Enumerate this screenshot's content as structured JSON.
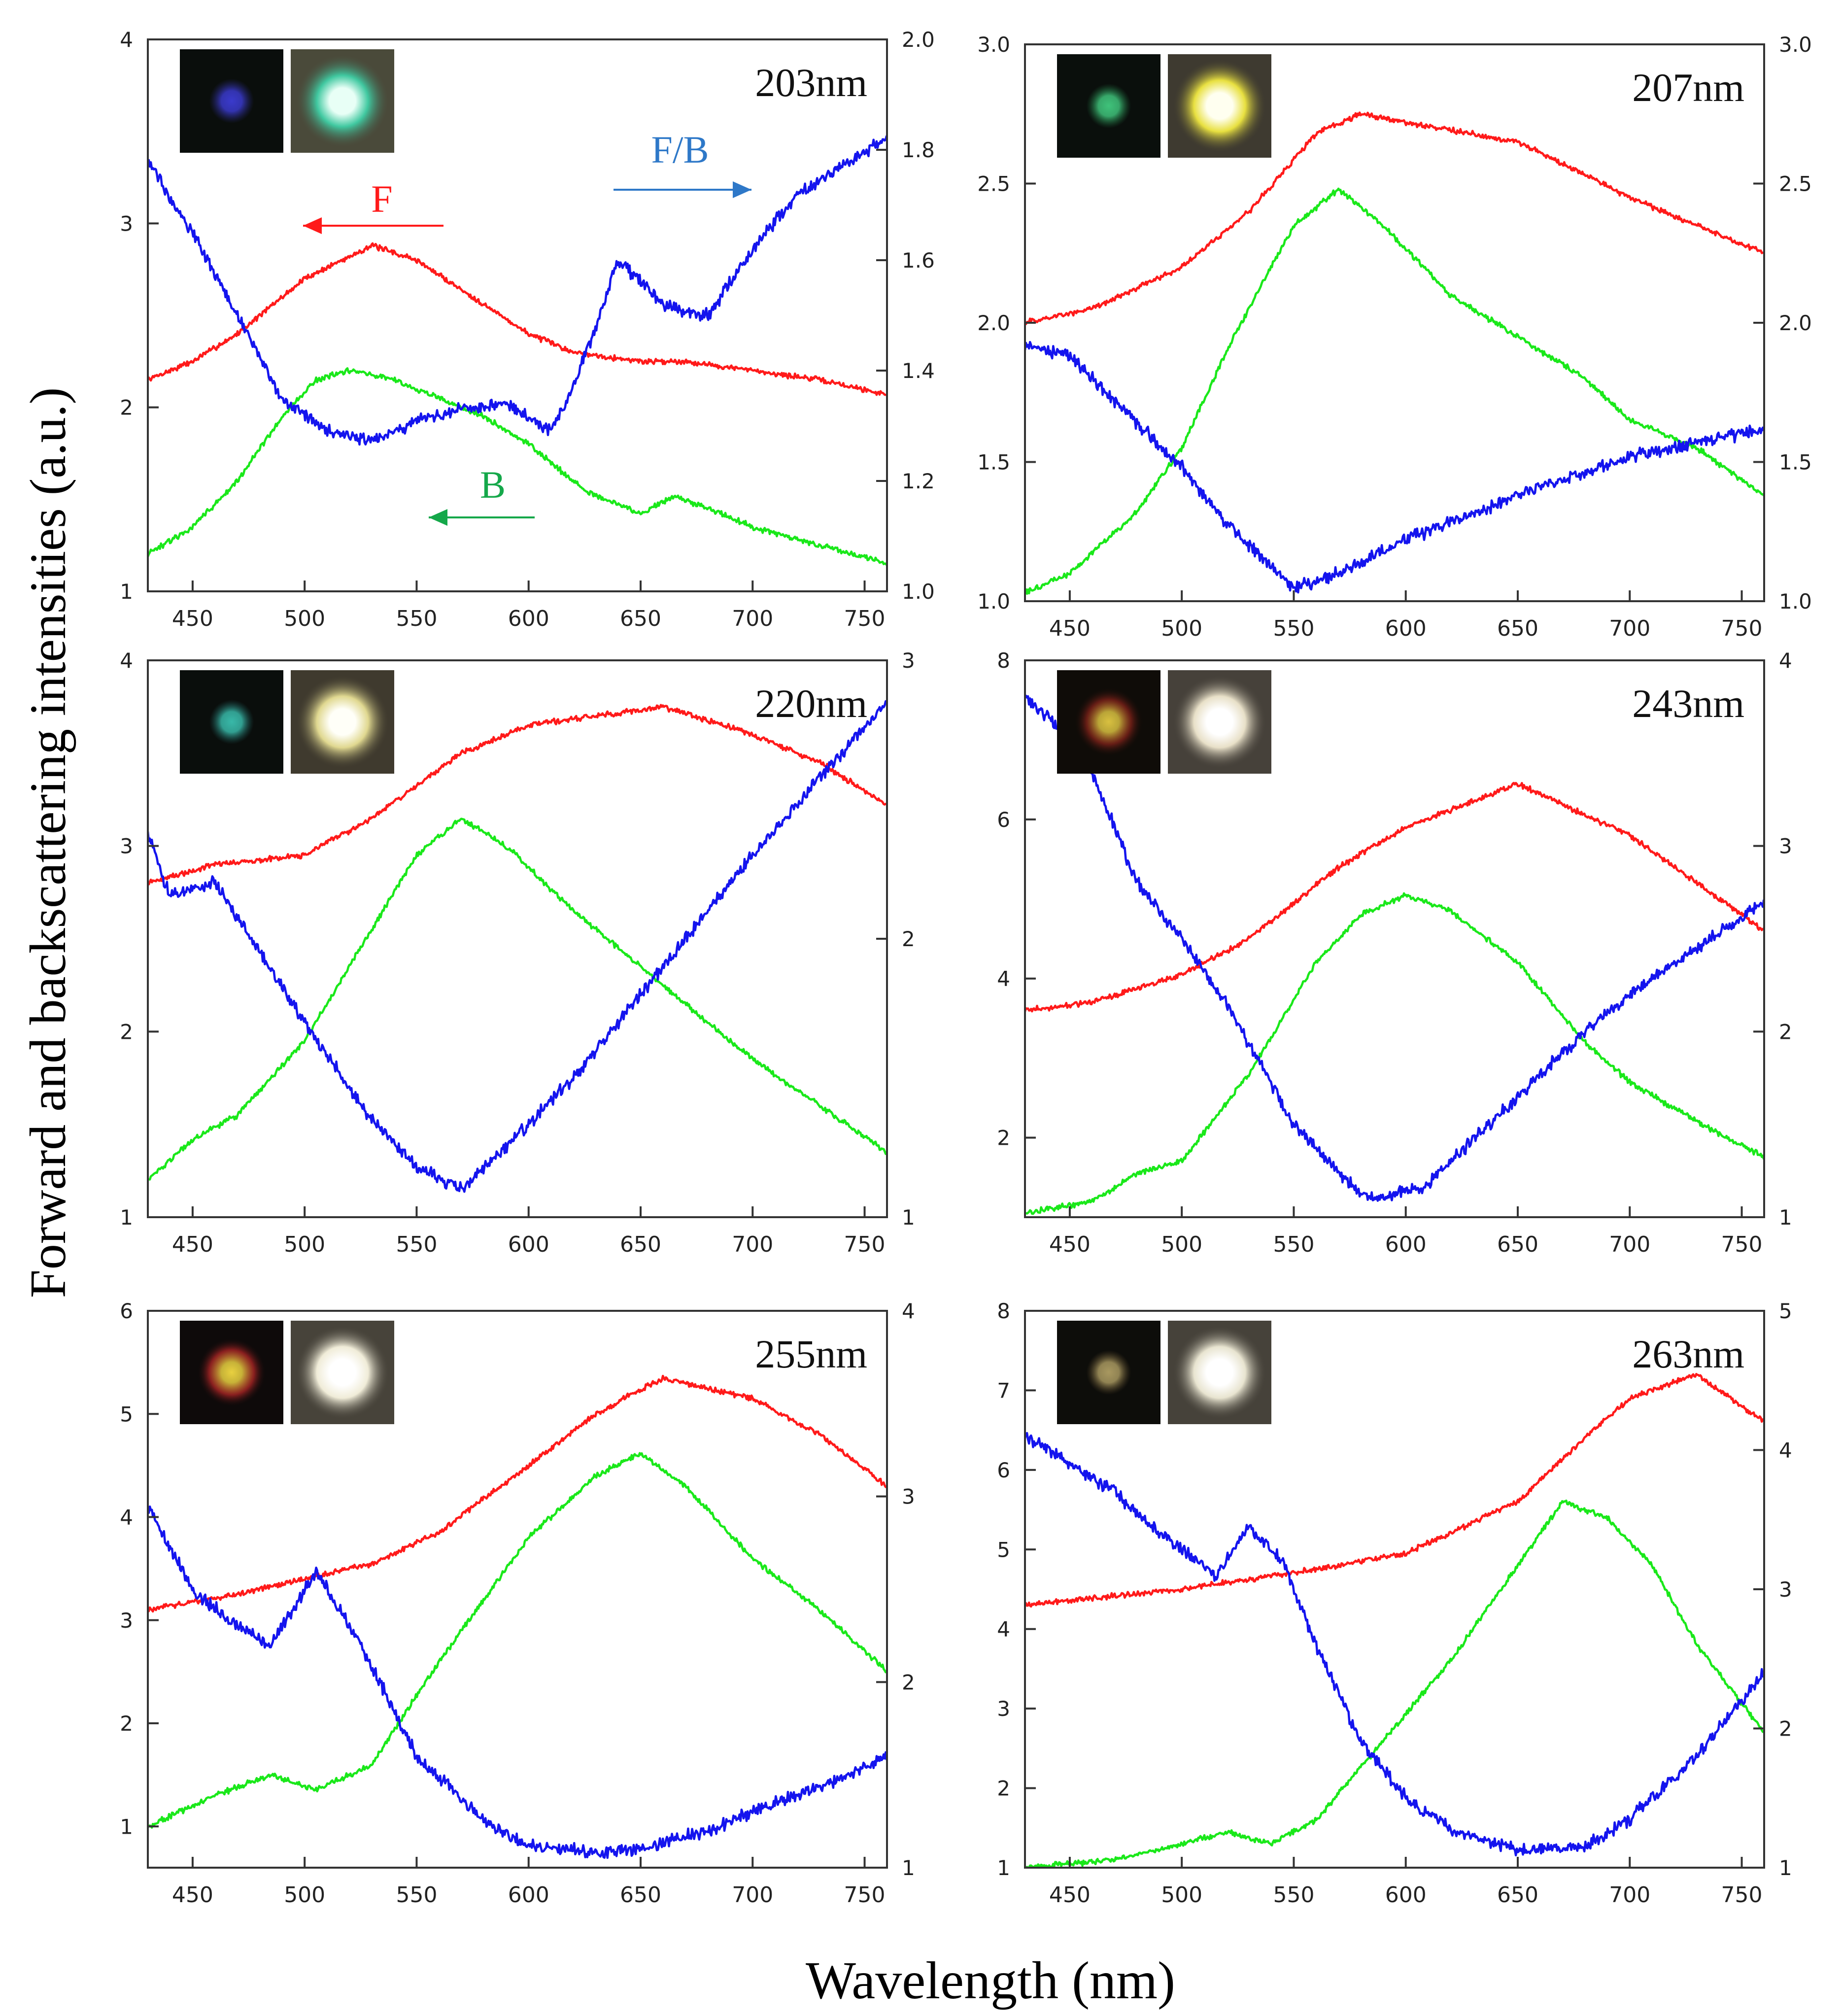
{
  "figure": {
    "ylabel": "Forward and backscattering intensities (a.u.)",
    "xlabel": "Wavelength (nm)"
  },
  "colors": {
    "F": "#ff1a1a",
    "B": "#1ae81a",
    "FB": "#1414ee",
    "axis": "#333333"
  },
  "chart_data": [
    {
      "type": "line",
      "title": "203nm",
      "xlim": [
        430,
        760
      ],
      "xticks": [
        450,
        500,
        550,
        600,
        650,
        700,
        750
      ],
      "ylim": [
        1,
        4
      ],
      "yticks": [
        1,
        2,
        3,
        4
      ],
      "ytick_labels": [
        "1",
        "2",
        "3",
        "4"
      ],
      "y2lim": [
        1.0,
        2.0
      ],
      "y2ticks": [
        1.0,
        1.2,
        1.4,
        1.6,
        1.8,
        2.0
      ],
      "y2tick_labels": [
        "1.0",
        "1.2",
        "1.4",
        "1.6",
        "1.8",
        "2.0"
      ],
      "annotations": [
        {
          "text": "F",
          "series": "F",
          "direction": "left"
        },
        {
          "text": "B",
          "series": "B",
          "direction": "left"
        },
        {
          "text": "F/B",
          "series": "F/B",
          "direction": "right"
        }
      ],
      "series": [
        {
          "name": "F",
          "axis": "left",
          "x": [
            430,
            450,
            470,
            500,
            530,
            550,
            575,
            600,
            620,
            650,
            670,
            700,
            730,
            760
          ],
          "y": [
            2.15,
            2.25,
            2.4,
            2.7,
            2.88,
            2.8,
            2.6,
            2.4,
            2.3,
            2.25,
            2.25,
            2.2,
            2.15,
            2.07
          ]
        },
        {
          "name": "B",
          "axis": "left",
          "x": [
            430,
            450,
            470,
            490,
            505,
            520,
            540,
            560,
            580,
            600,
            625,
            650,
            665,
            680,
            700,
            730,
            760
          ],
          "y": [
            1.2,
            1.35,
            1.6,
            1.95,
            2.15,
            2.2,
            2.15,
            2.05,
            1.95,
            1.8,
            1.55,
            1.42,
            1.52,
            1.45,
            1.35,
            1.25,
            1.15
          ]
        },
        {
          "name": "F/B",
          "axis": "right",
          "x": [
            430,
            450,
            470,
            490,
            510,
            530,
            550,
            570,
            590,
            610,
            620,
            630,
            640,
            660,
            680,
            700,
            720,
            740,
            760
          ],
          "y": [
            1.78,
            1.65,
            1.5,
            1.35,
            1.29,
            1.27,
            1.31,
            1.33,
            1.34,
            1.29,
            1.37,
            1.48,
            1.6,
            1.52,
            1.5,
            1.62,
            1.72,
            1.77,
            1.82
          ]
        }
      ]
    },
    {
      "type": "line",
      "title": "207nm",
      "xlim": [
        430,
        760
      ],
      "xticks": [
        450,
        500,
        550,
        600,
        650,
        700,
        750
      ],
      "ylim": [
        1.0,
        3.0
      ],
      "yticks": [
        1.0,
        1.5,
        2.0,
        2.5,
        3.0
      ],
      "ytick_labels": [
        "1.0",
        "1.5",
        "2.0",
        "2.5",
        "3.0"
      ],
      "y2lim": [
        1.0,
        3.0
      ],
      "y2ticks": [
        1.0,
        1.5,
        2.0,
        2.5,
        3.0
      ],
      "y2tick_labels": [
        "1.0",
        "1.5",
        "2.0",
        "2.5",
        "3.0"
      ],
      "annotations": [],
      "series": [
        {
          "name": "F",
          "axis": "left",
          "x": [
            430,
            460,
            500,
            530,
            560,
            580,
            600,
            650,
            700,
            760
          ],
          "y": [
            2.0,
            2.05,
            2.2,
            2.4,
            2.68,
            2.75,
            2.72,
            2.65,
            2.45,
            2.25
          ]
        },
        {
          "name": "B",
          "axis": "left",
          "x": [
            430,
            450,
            480,
            500,
            520,
            550,
            570,
            590,
            620,
            650,
            680,
            700,
            730,
            760
          ],
          "y": [
            1.03,
            1.1,
            1.32,
            1.55,
            1.9,
            2.35,
            2.48,
            2.35,
            2.1,
            1.95,
            1.8,
            1.65,
            1.55,
            1.38
          ]
        },
        {
          "name": "F/B",
          "axis": "right",
          "x": [
            430,
            450,
            470,
            500,
            520,
            550,
            570,
            600,
            650,
            700,
            730,
            760
          ],
          "y": [
            1.92,
            1.88,
            1.72,
            1.48,
            1.28,
            1.05,
            1.1,
            1.22,
            1.38,
            1.52,
            1.57,
            1.62
          ]
        }
      ]
    },
    {
      "type": "line",
      "title": "220nm",
      "xlim": [
        430,
        760
      ],
      "xticks": [
        450,
        500,
        550,
        600,
        650,
        700,
        750
      ],
      "ylim": [
        1,
        4
      ],
      "yticks": [
        1,
        2,
        3,
        4
      ],
      "ytick_labels": [
        "1",
        "2",
        "3",
        "4"
      ],
      "y2lim": [
        1,
        3
      ],
      "y2ticks": [
        1,
        2,
        3
      ],
      "y2tick_labels": [
        "1",
        "2",
        "3"
      ],
      "annotations": [],
      "series": [
        {
          "name": "F",
          "axis": "left",
          "x": [
            430,
            460,
            500,
            530,
            570,
            600,
            660,
            700,
            730,
            760
          ],
          "y": [
            2.8,
            2.9,
            2.95,
            3.15,
            3.5,
            3.65,
            3.75,
            3.6,
            3.45,
            3.22
          ]
        },
        {
          "name": "B",
          "axis": "left",
          "x": [
            430,
            450,
            470,
            500,
            530,
            550,
            570,
            590,
            620,
            650,
            680,
            700,
            730,
            760
          ],
          "y": [
            1.2,
            1.42,
            1.55,
            1.95,
            2.55,
            2.95,
            3.15,
            3.0,
            2.65,
            2.35,
            2.05,
            1.85,
            1.6,
            1.35
          ]
        },
        {
          "name": "F/B",
          "axis": "right",
          "x": [
            430,
            440,
            460,
            480,
            500,
            530,
            550,
            570,
            590,
            620,
            650,
            680,
            700,
            730,
            760
          ],
          "y": [
            2.38,
            2.15,
            2.2,
            1.95,
            1.7,
            1.35,
            1.18,
            1.1,
            1.25,
            1.5,
            1.8,
            2.1,
            2.3,
            2.58,
            2.85
          ]
        }
      ]
    },
    {
      "type": "line",
      "title": "243nm",
      "xlim": [
        430,
        760
      ],
      "xticks": [
        450,
        500,
        550,
        600,
        650,
        700,
        750
      ],
      "ylim": [
        1,
        8
      ],
      "yticks": [
        2,
        4,
        6,
        8
      ],
      "ytick_labels": [
        "2",
        "4",
        "6",
        "8"
      ],
      "y2lim": [
        1,
        4
      ],
      "y2ticks": [
        1,
        2,
        3,
        4
      ],
      "y2tick_labels": [
        "1",
        "2",
        "3",
        "4"
      ],
      "annotations": [],
      "series": [
        {
          "name": "F",
          "axis": "left",
          "x": [
            430,
            460,
            500,
            530,
            570,
            600,
            650,
            700,
            760
          ],
          "y": [
            3.6,
            3.7,
            4.05,
            4.5,
            5.4,
            5.9,
            6.45,
            5.8,
            4.6
          ]
        },
        {
          "name": "B",
          "axis": "left",
          "x": [
            430,
            460,
            480,
            500,
            530,
            560,
            580,
            600,
            620,
            650,
            680,
            700,
            730,
            760
          ],
          "y": [
            1.05,
            1.2,
            1.55,
            1.7,
            2.8,
            4.2,
            4.8,
            5.05,
            4.85,
            4.2,
            3.2,
            2.7,
            2.2,
            1.75
          ]
        },
        {
          "name": "F/B",
          "axis": "right",
          "x": [
            430,
            440,
            460,
            480,
            500,
            520,
            550,
            580,
            590,
            610,
            650,
            680,
            700,
            730,
            760
          ],
          "y": [
            3.8,
            3.7,
            3.4,
            2.8,
            2.5,
            2.15,
            1.5,
            1.12,
            1.1,
            1.18,
            1.65,
            2.0,
            2.2,
            2.45,
            2.7
          ]
        }
      ]
    },
    {
      "type": "line",
      "title": "255nm",
      "xlim": [
        430,
        760
      ],
      "xticks": [
        450,
        500,
        550,
        600,
        650,
        700,
        750
      ],
      "ylim": [
        0.6,
        6
      ],
      "yticks": [
        1,
        2,
        3,
        4,
        5,
        6
      ],
      "ytick_labels": [
        "1",
        "2",
        "3",
        "4",
        "5",
        "6"
      ],
      "y2lim": [
        1,
        4
      ],
      "y2ticks": [
        1,
        2,
        3,
        4
      ],
      "y2tick_labels": [
        "1",
        "2",
        "3",
        "4"
      ],
      "annotations": [],
      "series": [
        {
          "name": "F",
          "axis": "left",
          "x": [
            430,
            470,
            500,
            530,
            560,
            600,
            630,
            660,
            700,
            730,
            760
          ],
          "y": [
            3.1,
            3.25,
            3.4,
            3.55,
            3.85,
            4.5,
            5.0,
            5.35,
            5.15,
            4.8,
            4.3
          ]
        },
        {
          "name": "B",
          "axis": "left",
          "x": [
            430,
            460,
            485,
            505,
            530,
            560,
            600,
            630,
            650,
            670,
            700,
            730,
            760
          ],
          "y": [
            1.0,
            1.3,
            1.5,
            1.35,
            1.6,
            2.6,
            3.8,
            4.4,
            4.62,
            4.3,
            3.6,
            3.1,
            2.5
          ]
        },
        {
          "name": "F/B",
          "axis": "right",
          "x": [
            430,
            450,
            470,
            485,
            505,
            525,
            550,
            580,
            600,
            630,
            650,
            680,
            710,
            740,
            760
          ],
          "y": [
            2.95,
            2.5,
            2.3,
            2.2,
            2.6,
            2.2,
            1.6,
            1.25,
            1.12,
            1.08,
            1.1,
            1.2,
            1.35,
            1.48,
            1.6
          ]
        }
      ]
    },
    {
      "type": "line",
      "title": "263nm",
      "xlim": [
        430,
        760
      ],
      "xticks": [
        450,
        500,
        550,
        600,
        650,
        700,
        750
      ],
      "ylim": [
        1,
        8
      ],
      "yticks": [
        1,
        2,
        3,
        4,
        5,
        6,
        7,
        8
      ],
      "ytick_labels": [
        "1",
        "2",
        "3",
        "4",
        "5",
        "6",
        "7",
        "8"
      ],
      "y2lim": [
        1,
        5
      ],
      "y2ticks": [
        1,
        2,
        3,
        4,
        5
      ],
      "y2tick_labels": [
        "1",
        "2",
        "3",
        "4",
        "5"
      ],
      "annotations": [],
      "series": [
        {
          "name": "F",
          "axis": "left",
          "x": [
            430,
            500,
            560,
            600,
            650,
            680,
            700,
            730,
            760
          ],
          "y": [
            4.3,
            4.5,
            4.75,
            4.95,
            5.6,
            6.4,
            6.9,
            7.2,
            6.6
          ]
        },
        {
          "name": "B",
          "axis": "left",
          "x": [
            430,
            470,
            500,
            520,
            540,
            560,
            590,
            620,
            650,
            670,
            690,
            710,
            730,
            760
          ],
          "y": [
            1.0,
            1.1,
            1.3,
            1.45,
            1.3,
            1.6,
            2.6,
            3.6,
            4.8,
            5.6,
            5.4,
            4.8,
            3.8,
            2.7
          ]
        },
        {
          "name": "F/B",
          "axis": "right",
          "x": [
            430,
            450,
            470,
            490,
            515,
            530,
            545,
            560,
            580,
            600,
            620,
            650,
            680,
            700,
            730,
            760
          ],
          "y": [
            4.1,
            3.9,
            3.7,
            3.4,
            3.1,
            3.45,
            3.2,
            2.6,
            1.9,
            1.5,
            1.28,
            1.12,
            1.15,
            1.35,
            1.8,
            2.4
          ]
        }
      ]
    }
  ]
}
